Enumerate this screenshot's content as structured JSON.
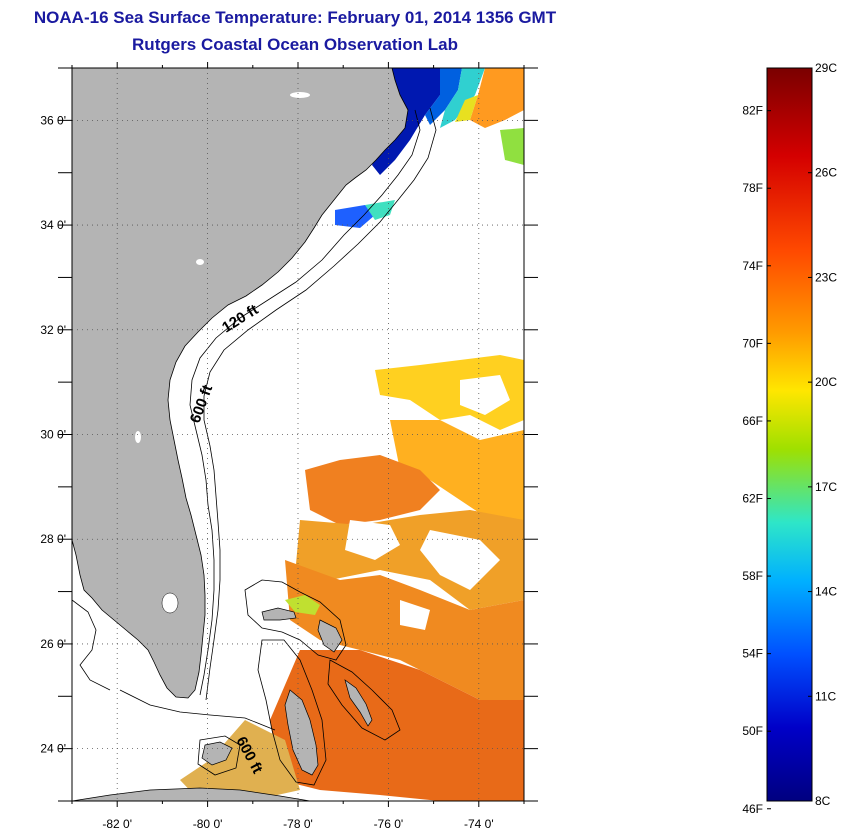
{
  "header": {
    "title": "NOAA-16 Sea Surface Temperature:  February 01, 2014 1356 GMT",
    "subtitle": "Rutgers Coastal Ocean Observation Lab"
  },
  "map": {
    "lon_ticks": [
      {
        "value": -82,
        "label": "-82 0'"
      },
      {
        "value": -80,
        "label": "-80 0'"
      },
      {
        "value": -78,
        "label": "-78 0'"
      },
      {
        "value": -76,
        "label": "-76 0'"
      },
      {
        "value": -74,
        "label": "-74 0'"
      }
    ],
    "lat_ticks": [
      {
        "value": 24,
        "label": "24 0'"
      },
      {
        "value": 26,
        "label": "26 0'"
      },
      {
        "value": 28,
        "label": "28 0'"
      },
      {
        "value": 30,
        "label": "30 0'"
      },
      {
        "value": 32,
        "label": "32 0'"
      },
      {
        "value": 34,
        "label": "34 0'"
      },
      {
        "value": 36,
        "label": "36 0'"
      }
    ],
    "contour_labels": {
      "c120": "120 ft",
      "c600a": "600 ft",
      "c600b": "600 ft"
    },
    "land_color": "#b4b4b4",
    "grid": true
  },
  "colorbar": {
    "f_labels": [
      "82F",
      "78F",
      "74F",
      "70F",
      "66F",
      "62F",
      "58F",
      "54F",
      "50F",
      "46F"
    ],
    "c_labels": [
      "29C",
      "26C",
      "23C",
      "20C",
      "17C",
      "14C",
      "11C",
      "8C"
    ],
    "gradient_colors": [
      "#7a0000",
      "#d40000",
      "#ff4a00",
      "#ff9a00",
      "#ffe600",
      "#9fe000",
      "#2ee6c8",
      "#00b0ff",
      "#0050ff",
      "#0000c8",
      "#000080"
    ]
  }
}
